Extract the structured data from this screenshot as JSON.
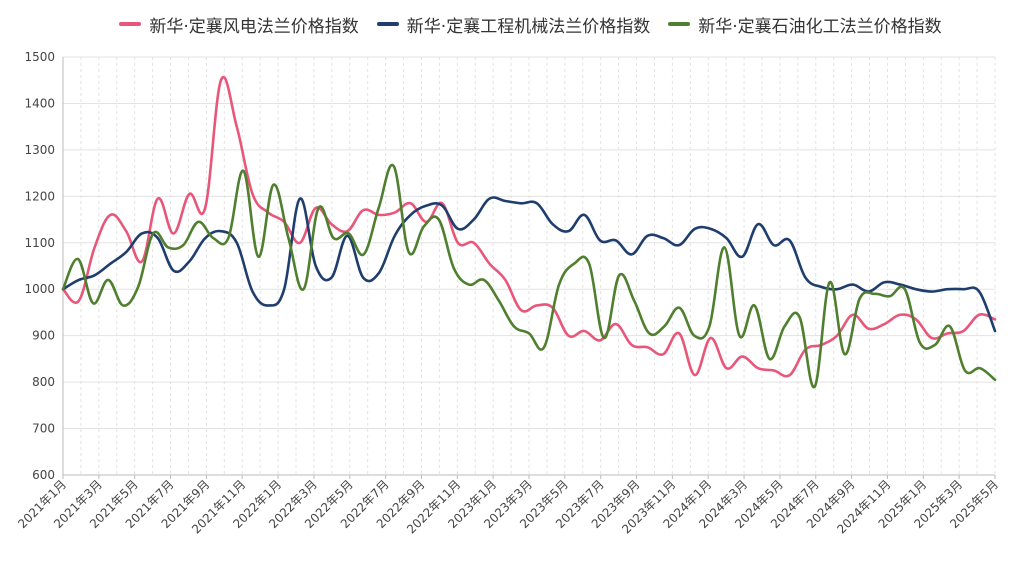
{
  "chart_data": {
    "type": "line",
    "title": "",
    "xlabel": "",
    "ylabel": "",
    "ylim": [
      600,
      1500
    ],
    "y_ticks": [
      600,
      700,
      800,
      900,
      1000,
      1100,
      1200,
      1300,
      1400,
      1500
    ],
    "grid": "on",
    "legend_placement": "top-center",
    "x_tick_labels": [
      "2021年1月",
      "2021年3月",
      "2021年5月",
      "2021年7月",
      "2021年9月",
      "2021年11月",
      "2022年1月",
      "2022年3月",
      "2022年5月",
      "2022年7月",
      "2022年9月",
      "2022年11月",
      "2023年1月",
      "2023年3月",
      "2023年5月",
      "2023年7月",
      "2023年9月",
      "2023年11月",
      "2024年1月",
      "2024年3月",
      "2024年5月",
      "2024年7月",
      "2024年9月",
      "2024年11月",
      "2025年1月",
      "2025年3月",
      "2025年5月"
    ],
    "series": [
      {
        "name": "新华·定襄风电法兰价格指数",
        "color": "#e8577a",
        "points": [
          [
            0,
            1000
          ],
          [
            1,
            975
          ],
          [
            2,
            1090
          ],
          [
            3,
            1160
          ],
          [
            4,
            1125
          ],
          [
            5,
            1060
          ],
          [
            6,
            1195
          ],
          [
            7,
            1120
          ],
          [
            8,
            1205
          ],
          [
            9,
            1175
          ],
          [
            10,
            1450
          ],
          [
            11,
            1350
          ],
          [
            12,
            1205
          ],
          [
            13,
            1165
          ],
          [
            14,
            1145
          ],
          [
            15,
            1100
          ],
          [
            16,
            1175
          ],
          [
            17,
            1140
          ],
          [
            18,
            1125
          ],
          [
            19,
            1170
          ],
          [
            20,
            1160
          ],
          [
            21,
            1165
          ],
          [
            22,
            1185
          ],
          [
            23,
            1145
          ],
          [
            24,
            1185
          ],
          [
            25,
            1100
          ],
          [
            26,
            1100
          ],
          [
            27,
            1055
          ],
          [
            28,
            1020
          ],
          [
            29,
            955
          ],
          [
            30,
            965
          ],
          [
            31,
            960
          ],
          [
            32,
            900
          ],
          [
            33,
            910
          ],
          [
            34,
            890
          ],
          [
            35,
            925
          ],
          [
            36,
            880
          ],
          [
            37,
            875
          ],
          [
            38,
            860
          ],
          [
            39,
            905
          ],
          [
            40,
            815
          ],
          [
            41,
            895
          ],
          [
            42,
            830
          ],
          [
            43,
            855
          ],
          [
            44,
            830
          ],
          [
            45,
            825
          ],
          [
            46,
            815
          ],
          [
            47,
            870
          ],
          [
            48,
            880
          ],
          [
            49,
            900
          ],
          [
            50,
            945
          ],
          [
            51,
            915
          ],
          [
            52,
            925
          ],
          [
            53,
            945
          ],
          [
            54,
            935
          ],
          [
            55,
            895
          ],
          [
            56,
            905
          ],
          [
            57,
            910
          ],
          [
            58,
            945
          ],
          [
            59,
            935
          ]
        ]
      },
      {
        "name": "新华·定襄工程机械法兰价格指数",
        "color": "#1f3e6e",
        "points": [
          [
            0,
            1000
          ],
          [
            1,
            1020
          ],
          [
            2,
            1030
          ],
          [
            3,
            1055
          ],
          [
            4,
            1080
          ],
          [
            5,
            1120
          ],
          [
            6,
            1110
          ],
          [
            7,
            1040
          ],
          [
            8,
            1060
          ],
          [
            9,
            1110
          ],
          [
            10,
            1125
          ],
          [
            11,
            1100
          ],
          [
            12,
            995
          ],
          [
            13,
            965
          ],
          [
            14,
            1000
          ],
          [
            15,
            1195
          ],
          [
            16,
            1050
          ],
          [
            17,
            1025
          ],
          [
            18,
            1115
          ],
          [
            19,
            1025
          ],
          [
            20,
            1035
          ],
          [
            21,
            1115
          ],
          [
            22,
            1160
          ],
          [
            23,
            1180
          ],
          [
            24,
            1180
          ],
          [
            25,
            1130
          ],
          [
            26,
            1150
          ],
          [
            27,
            1195
          ],
          [
            28,
            1190
          ],
          [
            29,
            1185
          ],
          [
            30,
            1185
          ],
          [
            31,
            1140
          ],
          [
            32,
            1125
          ],
          [
            33,
            1160
          ],
          [
            34,
            1105
          ],
          [
            35,
            1105
          ],
          [
            36,
            1075
          ],
          [
            37,
            1115
          ],
          [
            38,
            1110
          ],
          [
            39,
            1095
          ],
          [
            40,
            1130
          ],
          [
            41,
            1130
          ],
          [
            42,
            1110
          ],
          [
            43,
            1070
          ],
          [
            44,
            1140
          ],
          [
            45,
            1095
          ],
          [
            46,
            1105
          ],
          [
            47,
            1025
          ],
          [
            48,
            1005
          ],
          [
            49,
            1000
          ],
          [
            50,
            1010
          ],
          [
            51,
            995
          ],
          [
            52,
            1015
          ],
          [
            53,
            1010
          ],
          [
            54,
            1000
          ],
          [
            55,
            995
          ],
          [
            56,
            1000
          ],
          [
            57,
            1000
          ],
          [
            58,
            995
          ],
          [
            59,
            910
          ]
        ]
      },
      {
        "name": "新华·定襄石油化工法兰价格指数",
        "color": "#4f7f2f",
        "points": [
          [
            0,
            1000
          ],
          [
            1,
            1065
          ],
          [
            2,
            970
          ],
          [
            3,
            1020
          ],
          [
            4,
            965
          ],
          [
            5,
            1005
          ],
          [
            6,
            1120
          ],
          [
            7,
            1090
          ],
          [
            8,
            1095
          ],
          [
            9,
            1145
          ],
          [
            10,
            1110
          ],
          [
            11,
            1110
          ],
          [
            12,
            1255
          ],
          [
            13,
            1070
          ],
          [
            14,
            1225
          ],
          [
            15,
            1110
          ],
          [
            16,
            1000
          ],
          [
            17,
            1175
          ],
          [
            18,
            1110
          ],
          [
            19,
            1120
          ],
          [
            20,
            1075
          ],
          [
            21,
            1175
          ],
          [
            22,
            1265
          ],
          [
            23,
            1080
          ],
          [
            24,
            1135
          ],
          [
            25,
            1150
          ],
          [
            26,
            1045
          ],
          [
            27,
            1010
          ],
          [
            28,
            1020
          ],
          [
            29,
            975
          ],
          [
            30,
            920
          ],
          [
            31,
            905
          ],
          [
            32,
            875
          ],
          [
            33,
            1010
          ],
          [
            34,
            1055
          ],
          [
            35,
            1055
          ],
          [
            36,
            895
          ],
          [
            37,
            1030
          ],
          [
            38,
            975
          ],
          [
            39,
            905
          ],
          [
            40,
            920
          ],
          [
            41,
            960
          ],
          [
            42,
            900
          ],
          [
            43,
            920
          ],
          [
            44,
            1090
          ],
          [
            45,
            900
          ],
          [
            46,
            965
          ],
          [
            47,
            850
          ],
          [
            48,
            920
          ],
          [
            49,
            940
          ],
          [
            50,
            790
          ],
          [
            51,
            1015
          ],
          [
            52,
            860
          ],
          [
            53,
            980
          ],
          [
            54,
            990
          ],
          [
            55,
            985
          ],
          [
            56,
            1000
          ],
          [
            57,
            885
          ],
          [
            58,
            880
          ],
          [
            59,
            920
          ],
          [
            60,
            825
          ],
          [
            61,
            830
          ],
          [
            62,
            805
          ]
        ]
      }
    ]
  }
}
